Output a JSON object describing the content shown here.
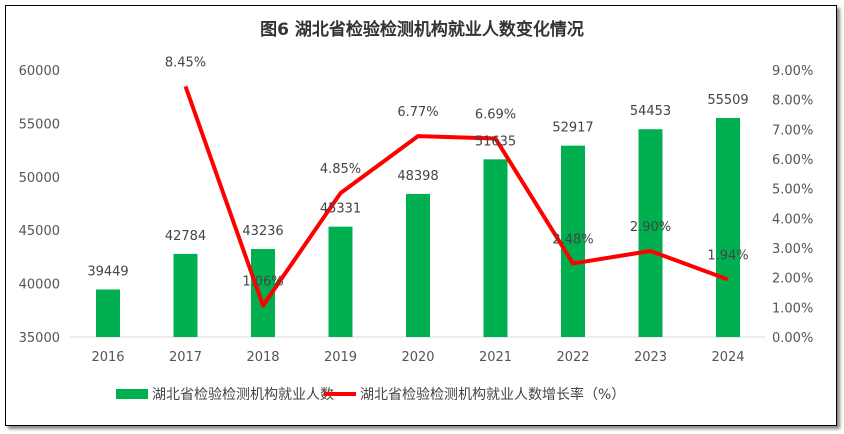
{
  "chart_data": {
    "type": "bar+line",
    "title": "图6  湖北省检验检测机构就业人数变化情况",
    "categories": [
      "2016",
      "2017",
      "2018",
      "2019",
      "2020",
      "2021",
      "2022",
      "2023",
      "2024"
    ],
    "series": [
      {
        "name": "湖北省检验检测机构就业人数",
        "type": "bar",
        "axis": "left",
        "color": "#00B050",
        "values": [
          39449,
          42784,
          43236,
          45331,
          48398,
          51635,
          52917,
          54453,
          55509
        ],
        "labels": [
          "39449",
          "42784",
          "43236",
          "45331",
          "48398",
          "51635",
          "52917",
          "54453",
          "55509"
        ]
      },
      {
        "name": "湖北省检验检测机构就业人数增长率（%）",
        "type": "line",
        "axis": "right",
        "color": "#FF0000",
        "values": [
          null,
          8.45,
          1.06,
          4.85,
          6.77,
          6.69,
          2.48,
          2.9,
          1.94
        ],
        "labels": [
          "",
          "8.45%",
          "1.06%",
          "4.85%",
          "6.77%",
          "6.69%",
          "2.48%",
          "2.90%",
          "1.94%"
        ]
      }
    ],
    "y_left": {
      "range": [
        35000,
        60000
      ],
      "ticks": [
        "35000",
        "40000",
        "45000",
        "50000",
        "55000",
        "60000"
      ]
    },
    "y_right": {
      "range": [
        0,
        9
      ],
      "ticks": [
        "0.00%",
        "1.00%",
        "2.00%",
        "3.00%",
        "4.00%",
        "5.00%",
        "6.00%",
        "7.00%",
        "8.00%",
        "9.00%"
      ]
    },
    "grid": false,
    "legend": "bottom"
  }
}
